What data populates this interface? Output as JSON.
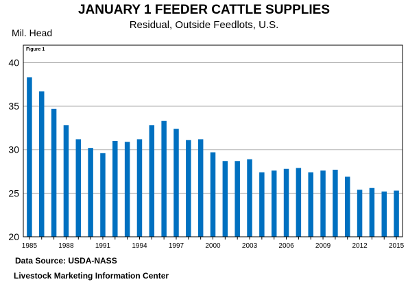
{
  "header": {
    "title": "JANUARY 1 FEEDER CATTLE SUPPLIES",
    "subtitle": "Residual, Outside Feedlots, U.S.",
    "unit": "Mil. Head"
  },
  "footer": {
    "source": "Data Source:  USDA-NASS",
    "center": "Livestock Marketing Information Center"
  },
  "chart_data": {
    "type": "bar",
    "annotation": "Figure 1",
    "ylabel": "Mil. Head",
    "ylim": [
      20,
      42
    ],
    "yticks": [
      20,
      25,
      30,
      35,
      40
    ],
    "categories": [
      "1985",
      "1986",
      "1987",
      "1988",
      "1989",
      "1990",
      "1991",
      "1992",
      "1993",
      "1994",
      "1995",
      "1996",
      "1997",
      "1998",
      "1999",
      "2000",
      "2001",
      "2002",
      "2003",
      "2004",
      "2005",
      "2006",
      "2007",
      "2008",
      "2009",
      "2010",
      "2011",
      "2012",
      "2013",
      "2014",
      "2015"
    ],
    "x_tick_labels": [
      "1985",
      "1988",
      "1991",
      "1994",
      "1997",
      "2000",
      "2003",
      "2006",
      "2009",
      "2012",
      "2015"
    ],
    "values": [
      38.3,
      36.7,
      34.7,
      32.8,
      31.2,
      30.2,
      29.6,
      31.0,
      30.9,
      31.2,
      32.8,
      33.3,
      32.4,
      31.1,
      31.2,
      29.7,
      28.7,
      28.7,
      28.9,
      27.4,
      27.6,
      27.8,
      27.9,
      27.4,
      27.6,
      27.7,
      26.9,
      25.4,
      25.6,
      25.2,
      25.3
    ],
    "bar_color": "#0070c0",
    "grid": true,
    "legend": "none"
  }
}
